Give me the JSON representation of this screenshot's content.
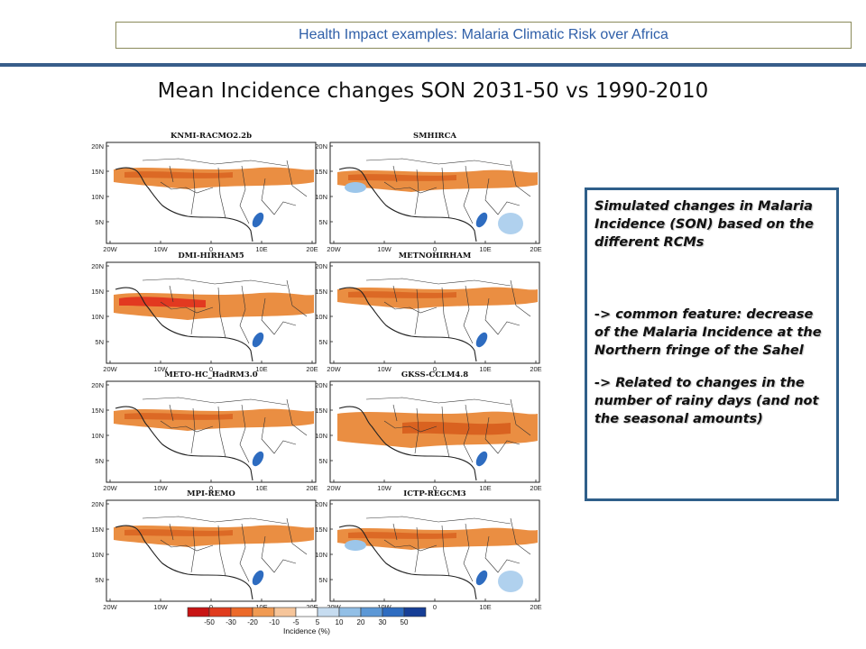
{
  "header": {
    "banner": "Health Impact examples: Malaria Climatic Risk over Africa"
  },
  "slide": {
    "title": "Mean Incidence changes SON 2031-50 vs 1990-2010"
  },
  "panels": [
    {
      "model": "KNMI-RACMO2.2b"
    },
    {
      "model": "SMHIRCA"
    },
    {
      "model": "DMI-HIRHAM5"
    },
    {
      "model": "METNOHIRHAM"
    },
    {
      "model": "METO-HC_HadRM3.0"
    },
    {
      "model": "GKSS-CCLM4.8"
    },
    {
      "model": "MPI-REMO"
    },
    {
      "model": "ICTP-REGCM3"
    }
  ],
  "axes": {
    "lat_ticks": [
      "20N",
      "15N",
      "10N",
      "5N"
    ],
    "lon_ticks": [
      "20W",
      "10W",
      "0",
      "10E",
      "20E"
    ]
  },
  "legend": {
    "title": "Incidence (%)",
    "values": [
      "-50",
      "-30",
      "-20",
      "-10",
      "-5",
      "5",
      "10",
      "20",
      "30",
      "50"
    ],
    "colors": [
      "#c81414",
      "#e03c1e",
      "#ec6a2a",
      "#f09a52",
      "#f6c59a",
      "#ffffff",
      "#c6dcf0",
      "#92bfe6",
      "#5c98d6",
      "#2e6cc0",
      "#163e96"
    ]
  },
  "callout": {
    "p1": "Simulated changes in Malaria Incidence (SON) based on the different RCMs",
    "p2": "-> common feature: decrease of the Malaria Incidence at the Northern fringe of the Sahel",
    "p3": "-> Related to changes in the number of rainy days (and not the seasonal amounts)"
  },
  "style": {
    "coast": "#222222",
    "border": "#333333",
    "orange": "#e8822e",
    "dark_orange": "#d65a1a",
    "red": "#e02a1a",
    "blue": "#2e6cc0",
    "light_blue": "#9cc6ea"
  }
}
